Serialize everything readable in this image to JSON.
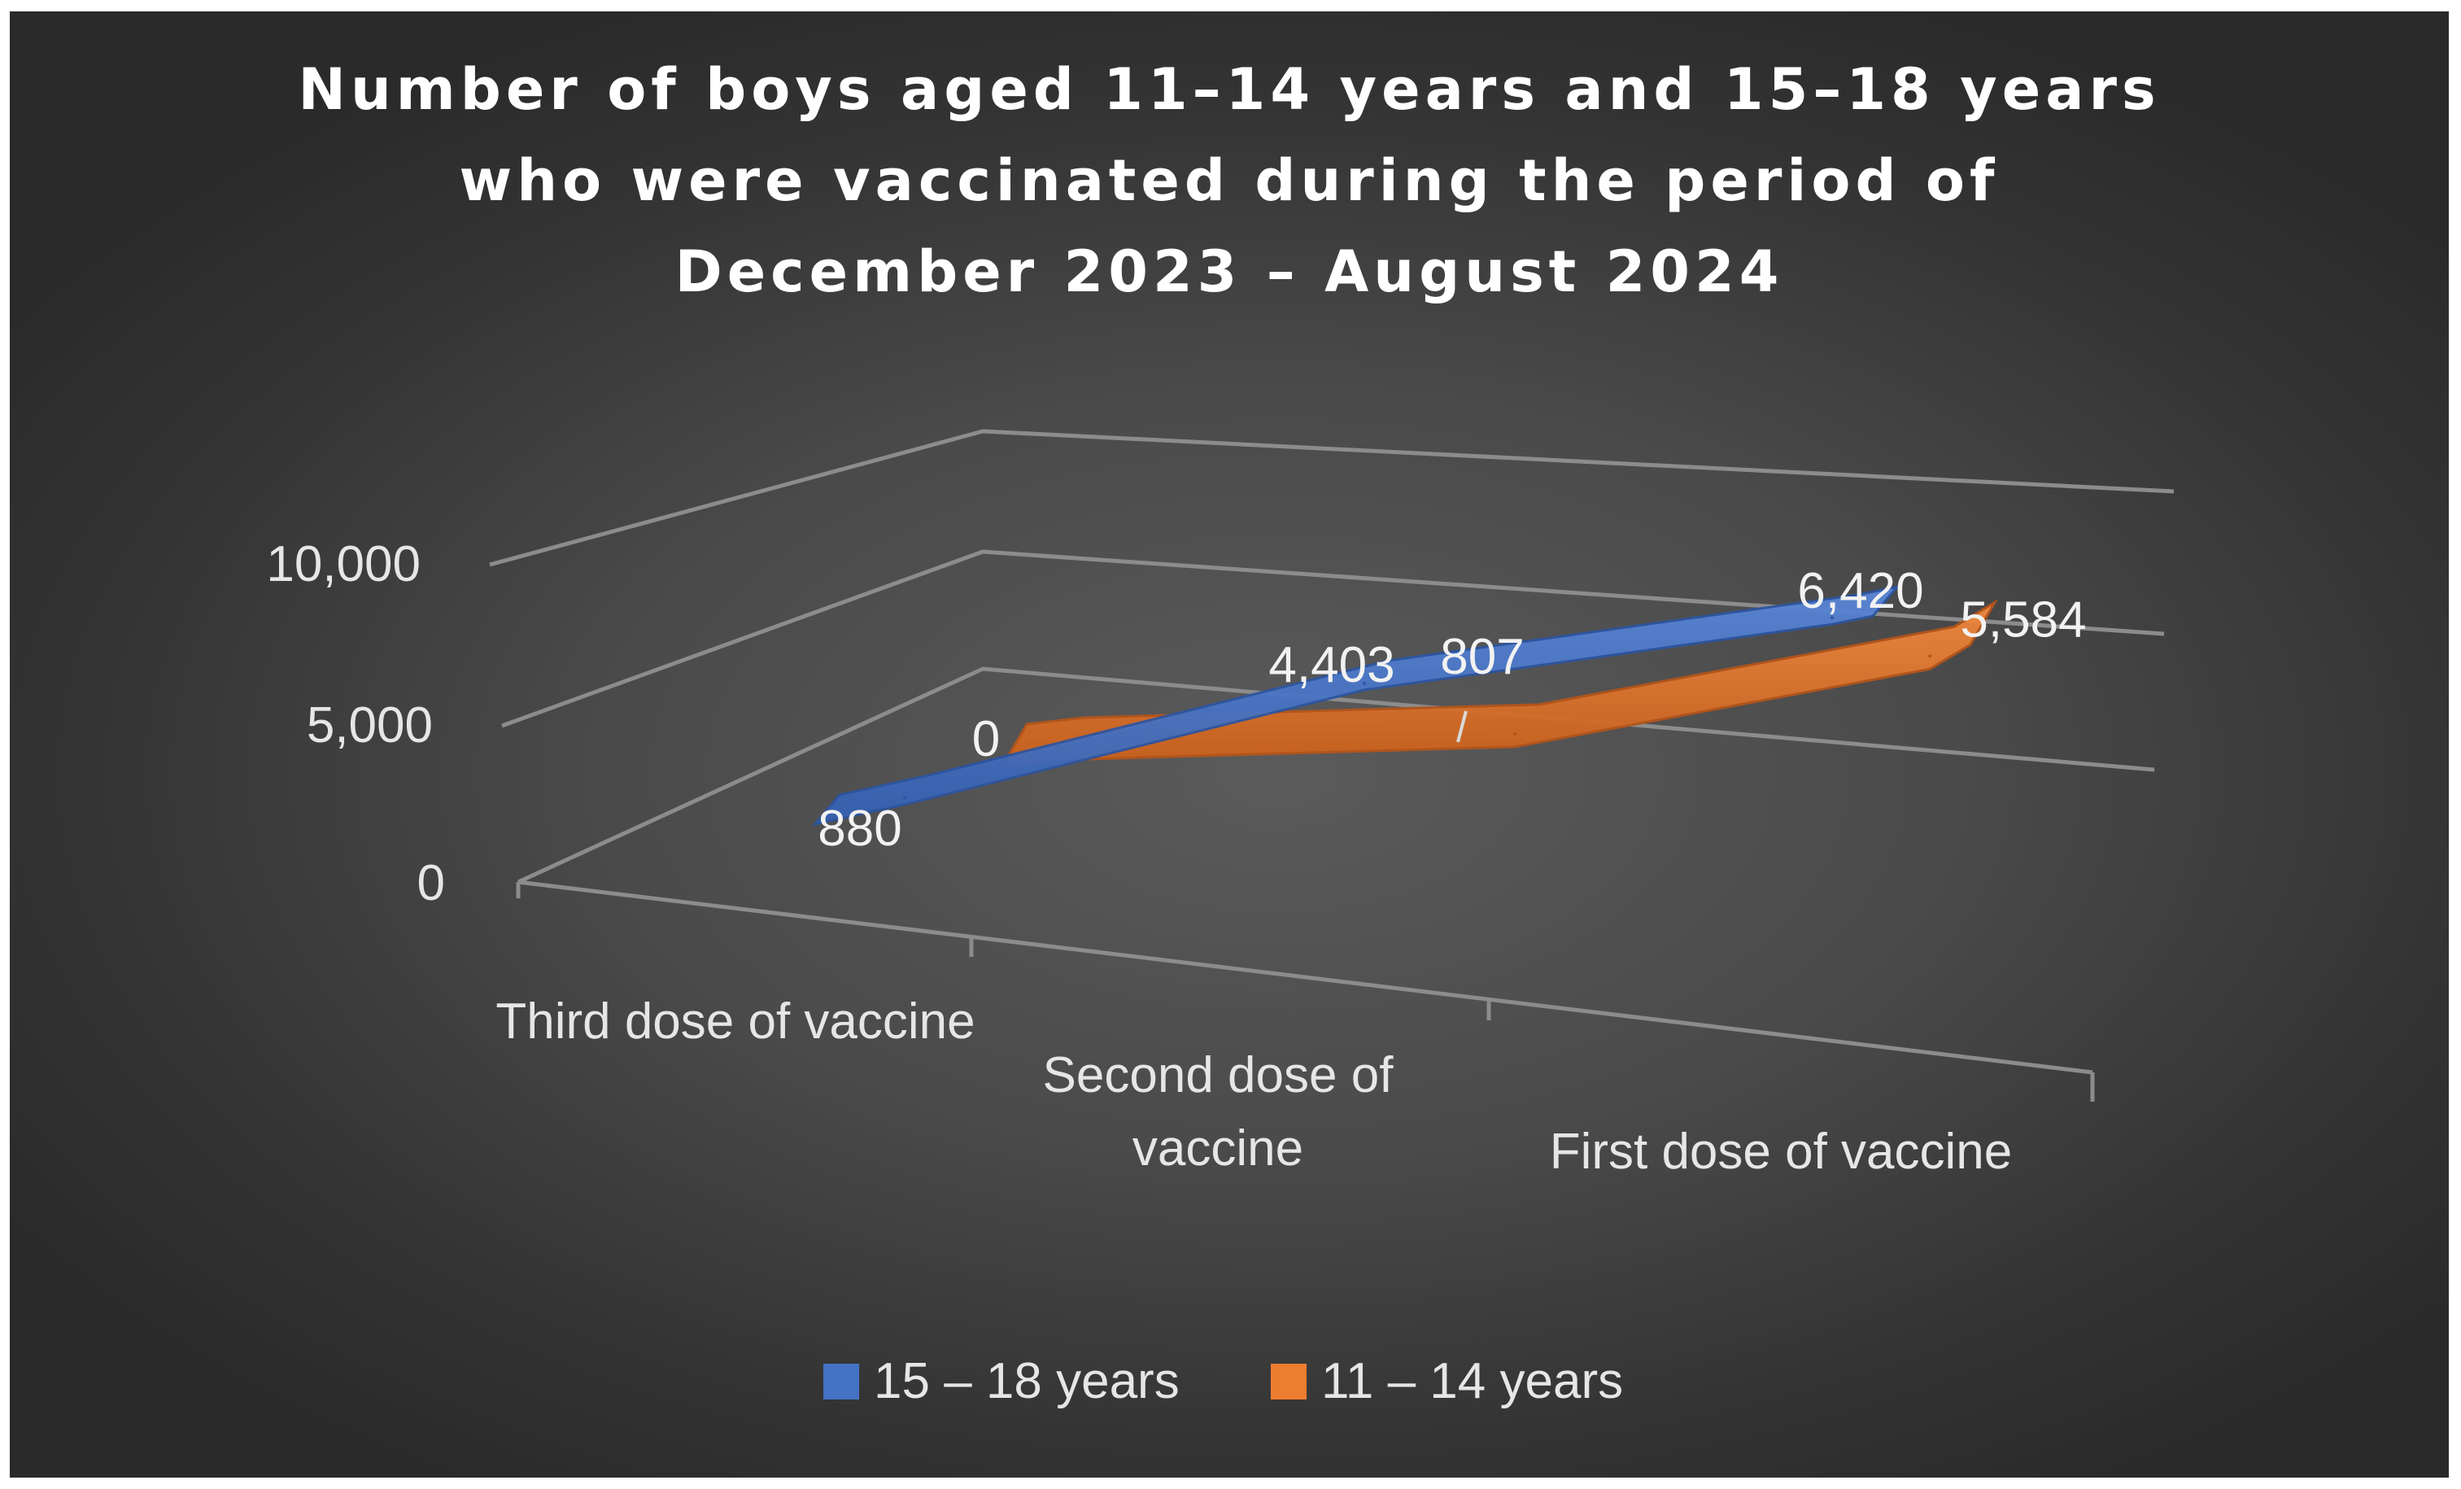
{
  "chart_data": {
    "type": "line",
    "title_lines": [
      "Number of boys aged 11–14 years and 15–18 years",
      "who were vaccinated during the period of",
      "December 2023 – August 2024"
    ],
    "categories": [
      "Third dose of vaccine",
      "Second dose of vaccine",
      "First dose of vaccine"
    ],
    "category_label_lines": [
      [
        "Third dose of vaccine"
      ],
      [
        "Second dose of",
        "vaccine"
      ],
      [
        "First dose of vaccine"
      ]
    ],
    "series": [
      {
        "name": "15 – 18 years",
        "values": [
          880,
          4403,
          6420
        ],
        "labels": [
          "880",
          "4,403",
          "6,420"
        ],
        "color": "#4472C4"
      },
      {
        "name": "11 – 14 years",
        "values": [
          0,
          807,
          5584
        ],
        "labels": [
          "0",
          "807",
          "5,584"
        ],
        "color": "#ED7D31"
      }
    ],
    "y_ticks": [
      "10,000",
      "5,000",
      "0"
    ],
    "ylim": [
      0,
      10000
    ],
    "legend_position": "bottom",
    "grid": true,
    "style": "3d-line"
  }
}
